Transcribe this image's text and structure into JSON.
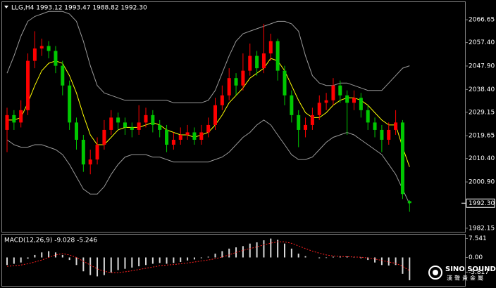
{
  "chart_data": [
    {
      "type": "candlestick",
      "title": "LLG,H4  1993.12 1993.47 1988.82 1992.30",
      "up_color": "#ff0000",
      "down_color": "#00c800",
      "open": [
        2022,
        2028,
        2025,
        2030,
        2050,
        2055,
        2056,
        2054,
        2048,
        2040,
        2025,
        2018,
        2008,
        2010,
        2016,
        2022,
        2027,
        2025,
        2023,
        2022,
        2025,
        2028,
        2024,
        2022,
        2016,
        2018,
        2020,
        2021,
        2018,
        2021,
        2024,
        2032,
        2036,
        2043,
        2040,
        2046,
        2052,
        2047,
        2053,
        2058,
        2046,
        2036,
        2028,
        2022,
        2024,
        2028,
        2033,
        2034,
        2040,
        2036,
        2033,
        2035,
        2030,
        2025,
        2022,
        2018,
        2022,
        2025,
        1993.12
      ],
      "high": [
        2031,
        2030,
        2034,
        2053,
        2062,
        2059,
        2058,
        2056,
        2050,
        2042,
        2027,
        2020,
        2014,
        2019,
        2026,
        2030,
        2029,
        2027,
        2025,
        2032,
        2031,
        2030,
        2026,
        2024,
        2021,
        2023,
        2024,
        2023,
        2024,
        2027,
        2035,
        2040,
        2047,
        2045,
        2053,
        2057,
        2054,
        2065,
        2061,
        2059,
        2048,
        2038,
        2030,
        2027,
        2031,
        2036,
        2037,
        2043,
        2042,
        2038,
        2038,
        2037,
        2032,
        2027,
        2024,
        2025,
        2030,
        2026,
        1993.47
      ],
      "low": [
        2013,
        2022,
        2023,
        2028,
        2047,
        2052,
        2051,
        2045,
        2036,
        2022,
        2014,
        2005,
        2004,
        2008,
        2014,
        2020,
        2022,
        2020,
        2019,
        2020,
        2023,
        2021,
        2019,
        2013,
        2014,
        2016,
        2018,
        2016,
        2016,
        2019,
        2022,
        2030,
        2034,
        2036,
        2038,
        2044,
        2044,
        2045,
        2050,
        2042,
        2032,
        2025,
        2015,
        2019,
        2022,
        2026,
        2030,
        2032,
        2033,
        2020,
        2030,
        2027,
        2022,
        2019,
        2013,
        2016,
        2020,
        1994,
        1988.82
      ],
      "close": [
        2028,
        2025,
        2030,
        2050,
        2055,
        2056,
        2054,
        2048,
        2040,
        2025,
        2018,
        2008,
        2010,
        2016,
        2022,
        2027,
        2025,
        2023,
        2022,
        2025,
        2028,
        2024,
        2022,
        2016,
        2018,
        2020,
        2021,
        2018,
        2021,
        2024,
        2032,
        2036,
        2043,
        2040,
        2046,
        2052,
        2047,
        2053,
        2058,
        2046,
        2036,
        2028,
        2022,
        2024,
        2028,
        2033,
        2034,
        2040,
        2036,
        2033,
        2035,
        2030,
        2025,
        2022,
        2018,
        2022,
        2025,
        1996,
        1992.3
      ],
      "series": [
        {
          "color": "#9a9a9a",
          "values": [
            2045,
            2052,
            2060,
            2066,
            2068,
            2069,
            2070,
            2070,
            2070,
            2069,
            2066,
            2058,
            2048,
            2040,
            2037,
            2036,
            2035,
            2034,
            2034,
            2034,
            2034,
            2034,
            2034,
            2034,
            2033,
            2033,
            2033,
            2033,
            2033,
            2034,
            2038,
            2045,
            2052,
            2058,
            2061,
            2062,
            2063,
            2064,
            2065,
            2066,
            2066,
            2065,
            2062,
            2052,
            2044,
            2041,
            2040,
            2040,
            2041,
            2041,
            2040,
            2039,
            2038,
            2038,
            2038,
            2041,
            2044,
            2047,
            2048
          ]
        },
        {
          "color": "#9a9a9a",
          "values": [
            2018,
            2016,
            2015,
            2015,
            2016,
            2016,
            2015,
            2014,
            2012,
            2008,
            2003,
            1998,
            1996,
            1996,
            1999,
            2004,
            2008,
            2011,
            2012,
            2012,
            2012,
            2011,
            2011,
            2010,
            2009,
            2009,
            2009,
            2009,
            2009,
            2009,
            2010,
            2011,
            2013,
            2016,
            2019,
            2021,
            2024,
            2026,
            2024,
            2020,
            2016,
            2012,
            2010,
            2010,
            2011,
            2014,
            2017,
            2019,
            2020,
            2021,
            2020,
            2018,
            2016,
            2014,
            2012,
            2008,
            2004,
            1998,
            1992
          ]
        },
        {
          "color": "#ffff00",
          "values": [
            2026,
            2026,
            2027,
            2033,
            2040,
            2046,
            2049,
            2050,
            2049,
            2044,
            2037,
            2028,
            2020,
            2016,
            2016,
            2019,
            2022,
            2023,
            2023,
            2023,
            2024,
            2025,
            2024,
            2022,
            2021,
            2020,
            2020,
            2019,
            2020,
            2021,
            2024,
            2028,
            2033,
            2036,
            2039,
            2043,
            2045,
            2047,
            2051,
            2050,
            2046,
            2040,
            2034,
            2029,
            2027,
            2027,
            2029,
            2032,
            2034,
            2035,
            2035,
            2034,
            2032,
            2029,
            2026,
            2024,
            2024,
            2015,
            2007
          ]
        }
      ],
      "ylim": [
        1980.7,
        2073.8
      ],
      "yticks": [
        {
          "value": 2066.65,
          "label": "2066.65"
        },
        {
          "value": 2057.4,
          "label": "2057.40"
        },
        {
          "value": 2047.9,
          "label": "2047.90"
        },
        {
          "value": 2038.4,
          "label": "2038.40"
        },
        {
          "value": 2029.15,
          "label": "2029.15"
        },
        {
          "value": 2019.65,
          "label": "2019.65"
        },
        {
          "value": 2010.4,
          "label": "2010.40"
        },
        {
          "value": 2000.9,
          "label": "2000.90"
        },
        {
          "value": 1982.15,
          "label": "1982.15"
        }
      ],
      "price_marker": {
        "value": 1992.3,
        "label": "1992.30"
      }
    },
    {
      "type": "macd",
      "title": "MACD(12,26,9) -9.028 -5.246",
      "color": "#d8d8d8",
      "values": [
        -3,
        -2.5,
        -2,
        -0.5,
        1,
        2,
        2.5,
        2,
        1,
        -1,
        -3,
        -5.5,
        -7,
        -7.5,
        -7,
        -6,
        -5,
        -4.5,
        -4,
        -3.5,
        -3,
        -2.5,
        -2.2,
        -2.5,
        -2.2,
        -1.8,
        -1.2,
        -0.8,
        -0.3,
        0.3,
        1.5,
        2.5,
        3.5,
        4,
        4.5,
        5.5,
        6,
        6.8,
        7.5,
        7,
        5.5,
        3.5,
        1.5,
        0.5,
        0,
        -0.3,
        -0.2,
        0.3,
        0.5,
        0.4,
        0.2,
        -0.3,
        -1,
        -2,
        -3,
        -3.2,
        -3,
        -6.5,
        -9.028
      ],
      "signal": {
        "color": "#ff2020",
        "values": [
          -3.5,
          -3.3,
          -3,
          -2.5,
          -1.8,
          -1,
          0,
          1,
          1.5,
          1,
          0,
          -1.5,
          -3,
          -4.5,
          -5.5,
          -6,
          -6,
          -5.7,
          -5.3,
          -4.8,
          -4.3,
          -3.8,
          -3.3,
          -3,
          -2.8,
          -2.5,
          -2.2,
          -1.8,
          -1.4,
          -1,
          -0.5,
          0.2,
          1,
          2,
          2.8,
          3.5,
          4.2,
          5,
          5.7,
          6.2,
          6.2,
          5.6,
          4.6,
          3.5,
          2.5,
          1.7,
          1,
          0.6,
          0.4,
          0.3,
          0.2,
          0.1,
          -0.2,
          -0.6,
          -1.2,
          -1.8,
          -2.3,
          -3.5,
          -5.246
        ]
      },
      "ylim": [
        -11,
        8.5
      ],
      "yticks": [
        7.541,
        {
          "value": 0,
          "label": "0.00"
        },
        -5.817
      ]
    }
  ],
  "watermark": {
    "name": "SINO SOUND",
    "tagline": "漢聲貴金屬"
  }
}
